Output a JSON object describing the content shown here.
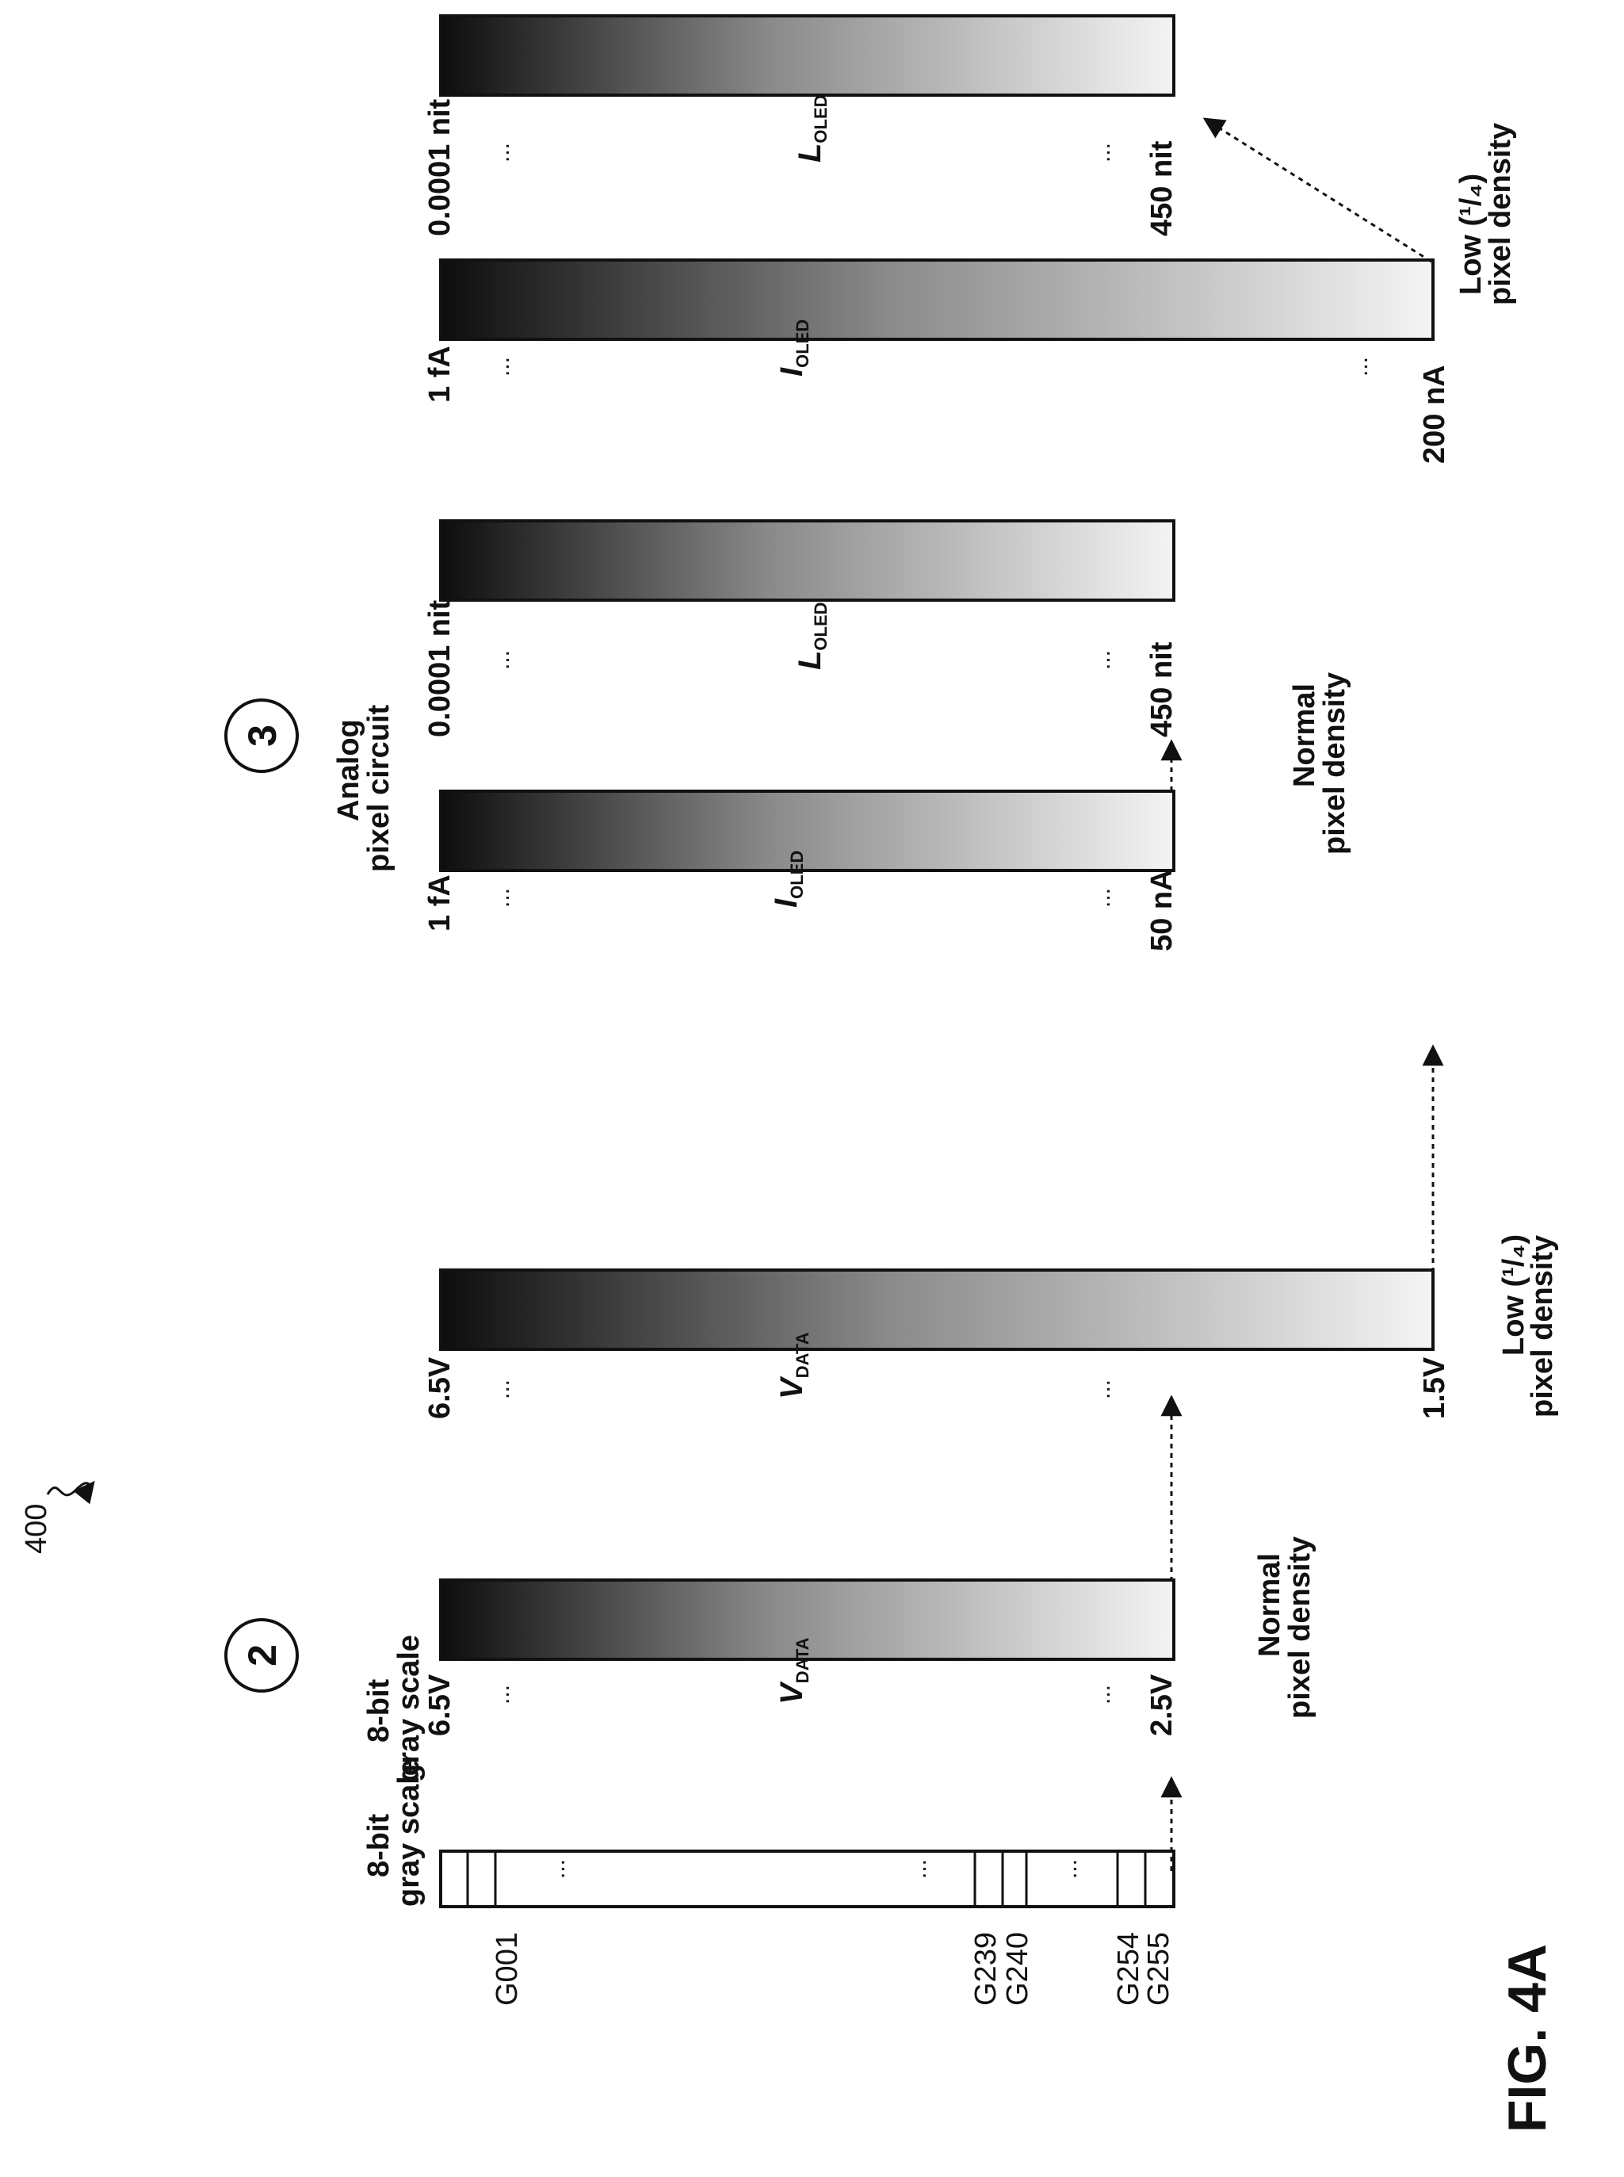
{
  "figure": {
    "ref_number": "400",
    "caption": "FIG. 4A"
  },
  "gray_scale_panel": {
    "title_line1": "8-bit",
    "title_line2": "gray scale",
    "levels": [
      "G001",
      "G239",
      "G240",
      "G254",
      "G255"
    ],
    "ellipsis": "..."
  },
  "stage2": {
    "marker": "2",
    "title_line1": "8-bit",
    "title_line2": "gray scale",
    "normal": {
      "top_value": "6.5V",
      "bottom_value": "2.5V",
      "symbol": "V",
      "subscript": "DATA",
      "density_line1": "Normal",
      "density_line2": "pixel density"
    },
    "low": {
      "top_value": "6.5V",
      "bottom_value": "1.5V",
      "symbol": "V",
      "subscript": "DATA",
      "density_line1": "Low (¹/₄)",
      "density_line2": "pixel density"
    }
  },
  "stage3": {
    "marker": "3",
    "title_line1": "Analog",
    "title_line2": "pixel circuit",
    "normal": {
      "current_top": "1 fA",
      "current_bottom": "50 nA",
      "current_symbol": "I",
      "current_subscript": "OLED",
      "lum_top": "0.0001 nit",
      "lum_bottom": "450 nit",
      "lum_symbol": "L",
      "lum_subscript": "OLED",
      "density_line1": "Normal",
      "density_line2": "pixel density"
    },
    "low": {
      "current_top": "1 fA",
      "current_bottom": "200 nA",
      "current_symbol": "I",
      "current_subscript": "OLED",
      "lum_top": "0.0001 nit",
      "lum_bottom": "450 nit",
      "lum_symbol": "L",
      "lum_subscript": "OLED",
      "density_line1": "Low (¹/₄)",
      "density_line2": "pixel density"
    }
  },
  "colors": {
    "gradient_dark": "#0d0d0d",
    "gradient_light": "#f4f4f4",
    "ink": "#111111"
  }
}
